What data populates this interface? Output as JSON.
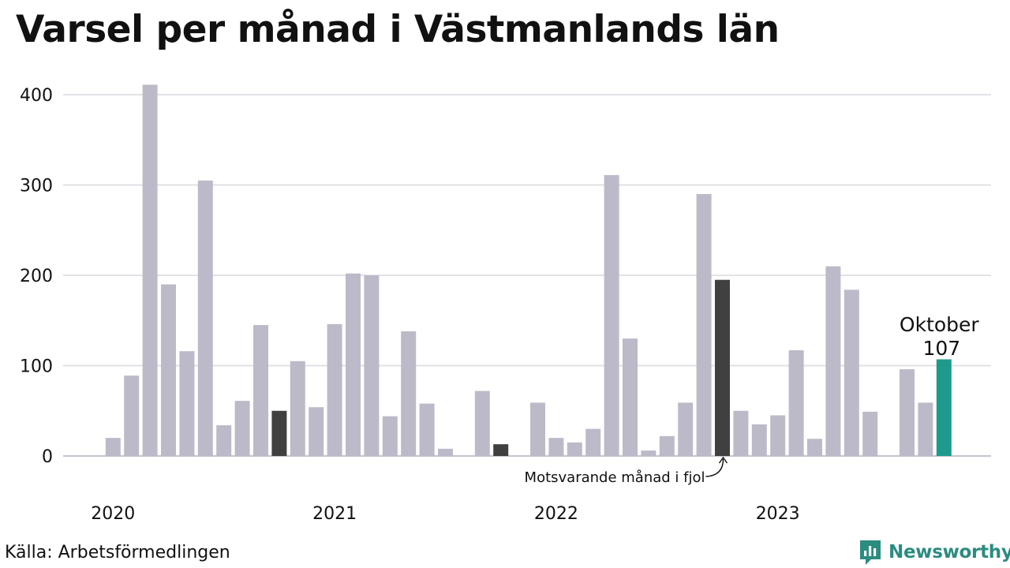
{
  "title": "Varsel per månad i Västmanlands län",
  "source": "Källa: Arbetsförmedlingen",
  "brand": {
    "name": "Newsworthy",
    "icon": "newsworthy-logo-icon"
  },
  "colors": {
    "bar": "#bcbac8",
    "comparison": "#404040",
    "highlight": "#1d9a8c",
    "grid": "#dedde3",
    "axis": "#c8c6d0",
    "brand": "#2b8c80"
  },
  "chart_data": {
    "type": "bar",
    "title": "Varsel per månad i Västmanlands län",
    "xlabel": "",
    "ylabel": "",
    "ylim": [
      0,
      420
    ],
    "yticks": [
      0,
      100,
      200,
      300,
      400
    ],
    "grid": true,
    "x_tick_labels": [
      {
        "label": "2020",
        "month": "2020-01"
      },
      {
        "label": "2021",
        "month": "2021-01"
      },
      {
        "label": "2022",
        "month": "2022-01"
      },
      {
        "label": "2023",
        "month": "2023-01"
      }
    ],
    "months": [
      "2020-01",
      "2020-02",
      "2020-03",
      "2020-04",
      "2020-05",
      "2020-06",
      "2020-07",
      "2020-08",
      "2020-09",
      "2020-10",
      "2020-11",
      "2020-12",
      "2021-01",
      "2021-02",
      "2021-03",
      "2021-04",
      "2021-05",
      "2021-06",
      "2021-07",
      "2021-08",
      "2021-09",
      "2021-10",
      "2021-11",
      "2021-12",
      "2022-01",
      "2022-02",
      "2022-03",
      "2022-04",
      "2022-05",
      "2022-06",
      "2022-07",
      "2022-08",
      "2022-09",
      "2022-10",
      "2022-11",
      "2022-12",
      "2023-01",
      "2023-02",
      "2023-03",
      "2023-04",
      "2023-05",
      "2023-06",
      "2023-07",
      "2023-08",
      "2023-09",
      "2023-10"
    ],
    "values": [
      20,
      89,
      411,
      190,
      116,
      305,
      34,
      61,
      145,
      50,
      105,
      54,
      146,
      202,
      200,
      44,
      138,
      58,
      8,
      0,
      72,
      13,
      0,
      59,
      20,
      15,
      30,
      311,
      130,
      6,
      22,
      59,
      290,
      195,
      50,
      35,
      45,
      117,
      19,
      210,
      184,
      49,
      0,
      96,
      59,
      107
    ],
    "comparison_months": [
      "2020-10",
      "2021-10",
      "2022-10"
    ],
    "highlight_month": "2023-10",
    "annotations": [
      {
        "text": "Oktober",
        "month": "2023-10"
      },
      {
        "text": "107",
        "month": "2023-10"
      },
      {
        "text": "Motsvarande månad i fjol",
        "month": "2022-10"
      }
    ]
  }
}
